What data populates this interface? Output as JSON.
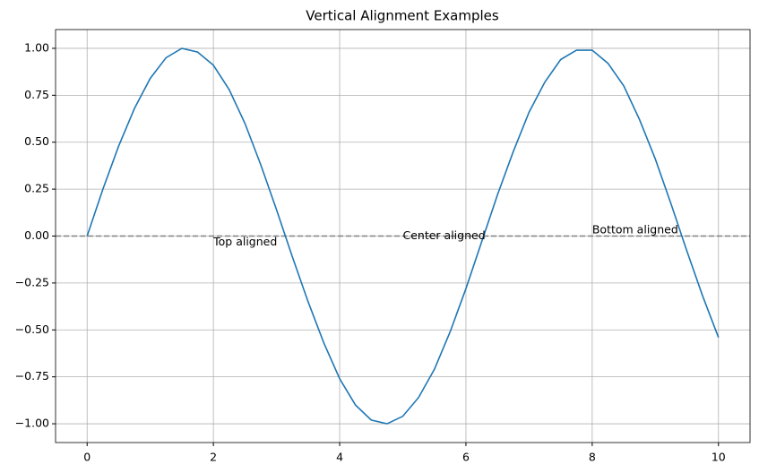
{
  "chart_data": {
    "type": "line",
    "title": "Vertical Alignment Examples",
    "x": [
      0,
      0.25,
      0.5,
      0.75,
      1,
      1.25,
      1.5,
      1.75,
      2,
      2.25,
      2.5,
      2.75,
      3,
      3.25,
      3.5,
      3.75,
      4,
      4.25,
      4.5,
      4.75,
      5,
      5.25,
      5.5,
      5.75,
      6,
      6.25,
      6.5,
      6.75,
      7,
      7.25,
      7.5,
      7.75,
      8,
      8.25,
      8.5,
      8.75,
      9,
      9.25,
      9.5,
      9.75,
      10
    ],
    "series": [
      {
        "color": "#1f77b4",
        "values": [
          0,
          0.25,
          0.48,
          0.68,
          0.84,
          0.95,
          1.0,
          0.98,
          0.91,
          0.78,
          0.6,
          0.38,
          0.14,
          -0.11,
          -0.35,
          -0.57,
          -0.76,
          -0.9,
          -0.98,
          -1.0,
          -0.96,
          -0.86,
          -0.71,
          -0.51,
          -0.28,
          -0.03,
          0.22,
          0.45,
          0.66,
          0.82,
          0.94,
          0.99,
          0.99,
          0.92,
          0.8,
          0.62,
          0.41,
          0.17,
          -0.08,
          -0.32,
          -0.54
        ]
      }
    ],
    "hline": {
      "y": 0,
      "color": "#808080"
    },
    "annotations": [
      {
        "text": "Top aligned",
        "x": 2,
        "y": 0,
        "va": "top"
      },
      {
        "text": "Center aligned",
        "x": 5,
        "y": 0,
        "va": "center"
      },
      {
        "text": "Bottom aligned",
        "x": 8,
        "y": 0,
        "va": "bottom"
      }
    ],
    "xlim": [
      -0.5,
      10.5
    ],
    "ylim": [
      -1.1,
      1.1
    ],
    "xticks": [
      0,
      2,
      4,
      6,
      8,
      10
    ],
    "yticks": [
      {
        "value": -1,
        "label": "−1.00"
      },
      {
        "value": -0.75,
        "label": "−0.75"
      },
      {
        "value": -0.5,
        "label": "−0.50"
      },
      {
        "value": -0.25,
        "label": "−0.25"
      },
      {
        "value": 0,
        "label": "0.00"
      },
      {
        "value": 0.25,
        "label": "0.25"
      },
      {
        "value": 0.5,
        "label": "0.50"
      },
      {
        "value": 0.75,
        "label": "0.75"
      },
      {
        "value": 1,
        "label": "1.00"
      }
    ],
    "grid": true
  }
}
